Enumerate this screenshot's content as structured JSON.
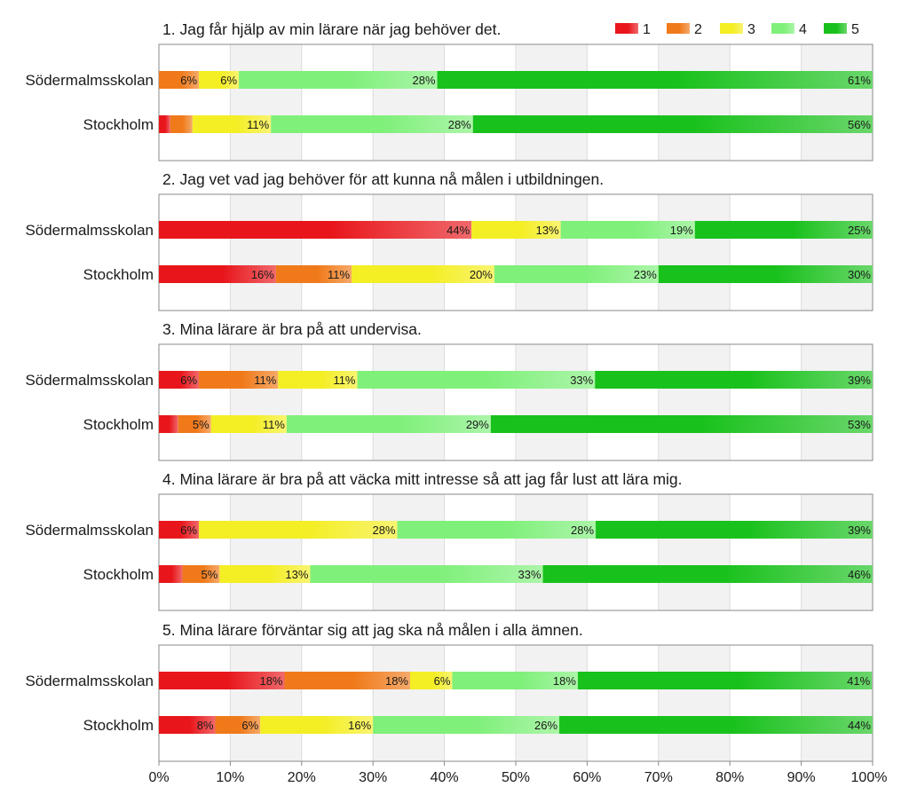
{
  "chart_data": {
    "type": "bar",
    "orientation": "horizontal",
    "stacked": true,
    "xlim": [
      0,
      100
    ],
    "x_ticks": [
      "0%",
      "10%",
      "20%",
      "30%",
      "40%",
      "50%",
      "60%",
      "70%",
      "80%",
      "90%",
      "100%"
    ],
    "legend_position": "top-right",
    "legend": [
      {
        "name": "1",
        "color": "#e8161b"
      },
      {
        "name": "2",
        "color": "#f07a1a"
      },
      {
        "name": "3",
        "color": "#f4ee24"
      },
      {
        "name": "4",
        "color": "#7ff07a"
      },
      {
        "name": "5",
        "color": "#19c11c"
      }
    ],
    "panels": [
      {
        "title": "1. Jag får hjälp av min lärare när jag behöver det.",
        "rows": [
          {
            "label": "Södermalmsskolan",
            "values": [
              0,
              5.6,
              5.6,
              27.8,
              61.1
            ],
            "labels": [
              "",
              "6%",
              "6%",
              "28%",
              "61%"
            ]
          },
          {
            "label": "Stockholm",
            "values": [
              1.6,
              3.1,
              11.0,
              28.3,
              56.0
            ],
            "labels": [
              "",
              "",
              "11%",
              "28%",
              "56%"
            ]
          }
        ]
      },
      {
        "title": "2. Jag vet vad jag behöver för att kunna nå målen i utbildningen.",
        "rows": [
          {
            "label": "Södermalmsskolan",
            "values": [
              43.8,
              0,
              12.5,
              18.8,
              25.0
            ],
            "labels": [
              "44%",
              "",
              "13%",
              "19%",
              "25%"
            ]
          },
          {
            "label": "Stockholm",
            "values": [
              16.4,
              10.6,
              20.0,
              23.0,
              30.0
            ],
            "labels": [
              "16%",
              "11%",
              "20%",
              "23%",
              "30%"
            ]
          }
        ]
      },
      {
        "title": "3. Mina lärare är bra på att undervisa.",
        "rows": [
          {
            "label": "Södermalmsskolan",
            "values": [
              5.6,
              11.1,
              11.1,
              33.3,
              38.9
            ],
            "labels": [
              "6%",
              "11%",
              "11%",
              "33%",
              "39%"
            ]
          },
          {
            "label": "Stockholm",
            "values": [
              2.7,
              4.6,
              10.6,
              28.6,
              53.5
            ],
            "labels": [
              "",
              "5%",
              "11%",
              "29%",
              "53%"
            ]
          }
        ]
      },
      {
        "title": "4. Mina lärare är bra på att väcka mitt intresse så att jag får lust att lära mig.",
        "rows": [
          {
            "label": "Södermalmsskolan",
            "values": [
              5.6,
              0,
              27.8,
              27.8,
              38.9
            ],
            "labels": [
              "6%",
              "",
              "28%",
              "28%",
              "39%"
            ]
          },
          {
            "label": "Stockholm",
            "values": [
              3.3,
              5.2,
              12.7,
              32.6,
              46.2
            ],
            "labels": [
              "",
              "5%",
              "13%",
              "33%",
              "46%"
            ]
          }
        ]
      },
      {
        "title": "5. Mina lärare förväntar sig att jag ska nå målen i alla ämnen.",
        "rows": [
          {
            "label": "Södermalmsskolan",
            "values": [
              17.6,
              17.6,
              5.9,
              17.6,
              41.2
            ],
            "labels": [
              "18%",
              "18%",
              "6%",
              "18%",
              "41%"
            ]
          },
          {
            "label": "Stockholm",
            "values": [
              7.9,
              6.3,
              15.8,
              26.1,
              43.9
            ],
            "labels": [
              "8%",
              "6%",
              "16%",
              "26%",
              "44%"
            ]
          }
        ]
      }
    ]
  }
}
